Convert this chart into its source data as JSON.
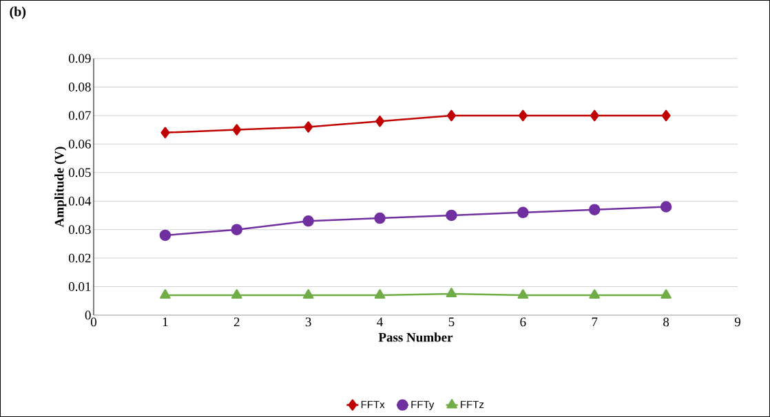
{
  "chart_data": {
    "type": "line",
    "title": "(b)",
    "xlabel": "Pass Number",
    "ylabel": "Amplitude (V)",
    "x": [
      1,
      2,
      3,
      4,
      5,
      6,
      7,
      8
    ],
    "series": [
      {
        "name": "FFTx",
        "color": "#c00000",
        "marker": "diamond",
        "values": [
          0.064,
          0.065,
          0.066,
          0.068,
          0.07,
          0.07,
          0.07,
          0.07
        ]
      },
      {
        "name": "FFTy",
        "color": "#7030a0",
        "marker": "circle",
        "values": [
          0.028,
          0.03,
          0.033,
          0.034,
          0.035,
          0.036,
          0.037,
          0.038
        ]
      },
      {
        "name": "FFTz",
        "color": "#70ad47",
        "marker": "triangle",
        "values": [
          0.007,
          0.007,
          0.007,
          0.007,
          0.0075,
          0.007,
          0.007,
          0.007
        ]
      }
    ],
    "xlim": [
      0,
      9
    ],
    "xticks": [
      0,
      1,
      2,
      3,
      4,
      5,
      6,
      7,
      8,
      9
    ],
    "ylim": [
      0,
      0.09
    ],
    "yticks": [
      0,
      0.01,
      0.02,
      0.03,
      0.04,
      0.05,
      0.06,
      0.07,
      0.08,
      0.09
    ],
    "grid": "y",
    "legend": "bottom",
    "line_style": "solid"
  }
}
